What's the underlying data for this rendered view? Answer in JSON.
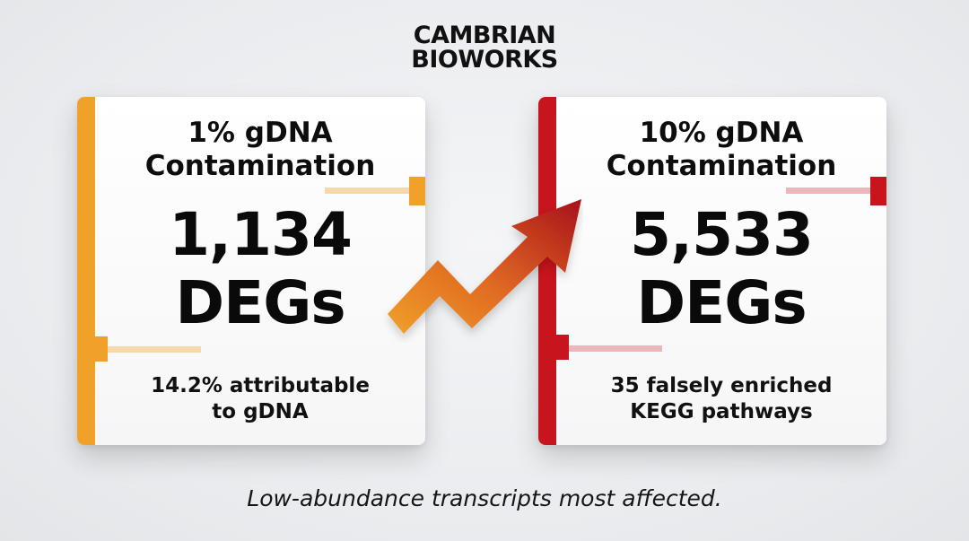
{
  "logo": {
    "line1": "CAMBRIAN",
    "line2": "BIOWORKS"
  },
  "left_card": {
    "title_line1": "1% gDNA",
    "title_line2": "Contamination",
    "value_line1": "1,134",
    "value_line2": "DEGs",
    "note_line1": "14.2% attributable",
    "note_line2": "to gDNA",
    "accent_color": "#f0a12a"
  },
  "right_card": {
    "title_line1": "10% gDNA",
    "title_line2": "Contamination",
    "value_line1": "5,533",
    "value_line2": "DEGs",
    "note_line1": "35 falsely enriched",
    "note_line2": "KEGG pathways",
    "accent_color": "#c8141c"
  },
  "arrow": {
    "icon": "trend-up-arrow-icon",
    "gradient_start": "#f0a12a",
    "gradient_end": "#a8101c"
  },
  "caption": "Low-abundance transcripts most affected."
}
